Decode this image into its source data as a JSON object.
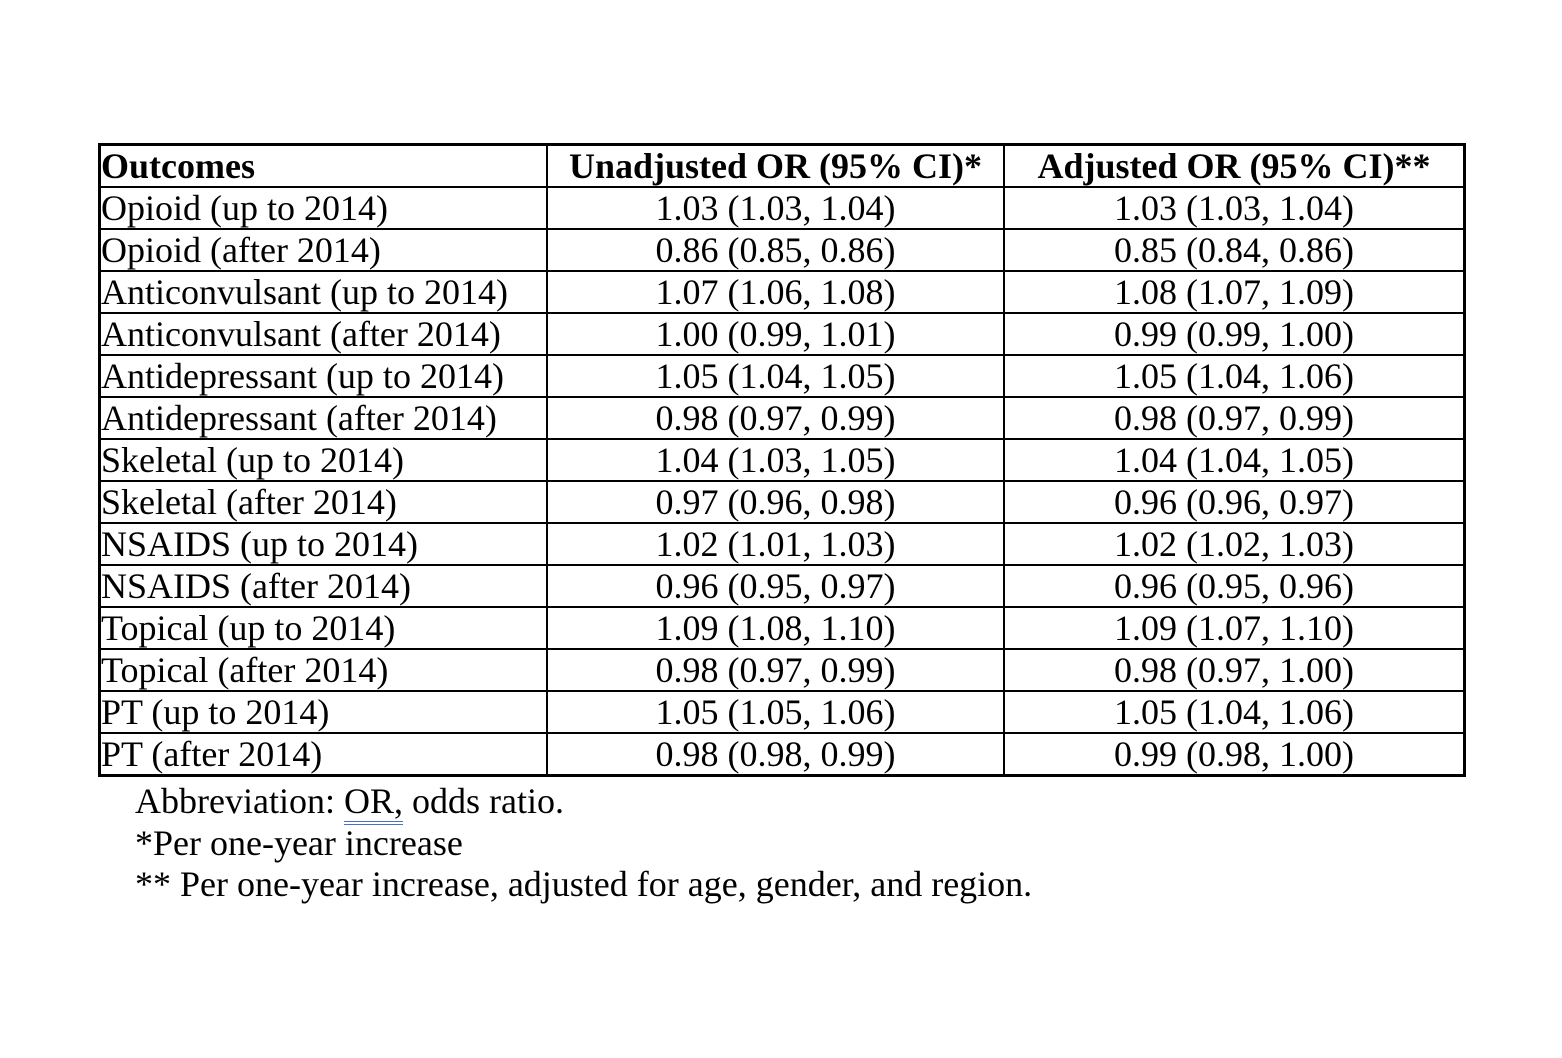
{
  "table": {
    "columns": [
      "Outcomes",
      "Unadjusted OR (95% CI)*",
      "Adjusted OR (95% CI)**"
    ],
    "rows": [
      {
        "outcome": "Opioid (up to 2014)",
        "unadjusted": "1.03 (1.03, 1.04)",
        "adjusted": "1.03 (1.03, 1.04)"
      },
      {
        "outcome": "Opioid (after 2014)",
        "unadjusted": "0.86 (0.85, 0.86)",
        "adjusted": "0.85 (0.84, 0.86)"
      },
      {
        "outcome": "Anticonvulsant (up to 2014)",
        "unadjusted": "1.07 (1.06, 1.08)",
        "adjusted": "1.08 (1.07, 1.09)"
      },
      {
        "outcome": "Anticonvulsant (after 2014)",
        "unadjusted": "1.00 (0.99, 1.01)",
        "adjusted": "0.99 (0.99, 1.00)"
      },
      {
        "outcome": "Antidepressant (up to 2014)",
        "unadjusted": "1.05 (1.04, 1.05)",
        "adjusted": "1.05 (1.04, 1.06)"
      },
      {
        "outcome": "Antidepressant (after 2014)",
        "unadjusted": "0.98 (0.97, 0.99)",
        "adjusted": "0.98 (0.97, 0.99)"
      },
      {
        "outcome": "Skeletal (up to 2014)",
        "unadjusted": "1.04 (1.03, 1.05)",
        "adjusted": "1.04 (1.04, 1.05)"
      },
      {
        "outcome": "Skeletal (after 2014)",
        "unadjusted": "0.97 (0.96, 0.98)",
        "adjusted": "0.96 (0.96, 0.97)"
      },
      {
        "outcome": "NSAIDS (up to 2014)",
        "unadjusted": "1.02 (1.01, 1.03)",
        "adjusted": "1.02 (1.02, 1.03)"
      },
      {
        "outcome": "NSAIDS (after 2014)",
        "unadjusted": "0.96 (0.95, 0.97)",
        "adjusted": "0.96 (0.95, 0.96)"
      },
      {
        "outcome": "Topical (up to 2014)",
        "unadjusted": "1.09 (1.08, 1.10)",
        "adjusted": "1.09 (1.07, 1.10)"
      },
      {
        "outcome": "Topical (after 2014)",
        "unadjusted": "0.98 (0.97, 0.99)",
        "adjusted": "0.98 (0.97, 1.00)"
      },
      {
        "outcome": "PT (up to 2014)",
        "unadjusted": "1.05 (1.05, 1.06)",
        "adjusted": "1.05 (1.04, 1.06)"
      },
      {
        "outcome": "PT (after 2014)",
        "unadjusted": "0.98 (0.98, 0.99)",
        "adjusted": "0.99 (0.98, 1.00)"
      }
    ]
  },
  "footnotes": {
    "abbreviation_prefix": "Abbreviation: ",
    "abbreviation_term": "OR,",
    "abbreviation_suffix": " odds ratio.",
    "single_asterisk_note": "*Per one-year increase",
    "double_asterisk_note": "** Per one-year increase, adjusted for age, gender, and region."
  },
  "colors": {
    "grammar_underline_blue": "#4472C4",
    "table_border": "#000000",
    "text": "#000000",
    "background": "#ffffff"
  }
}
